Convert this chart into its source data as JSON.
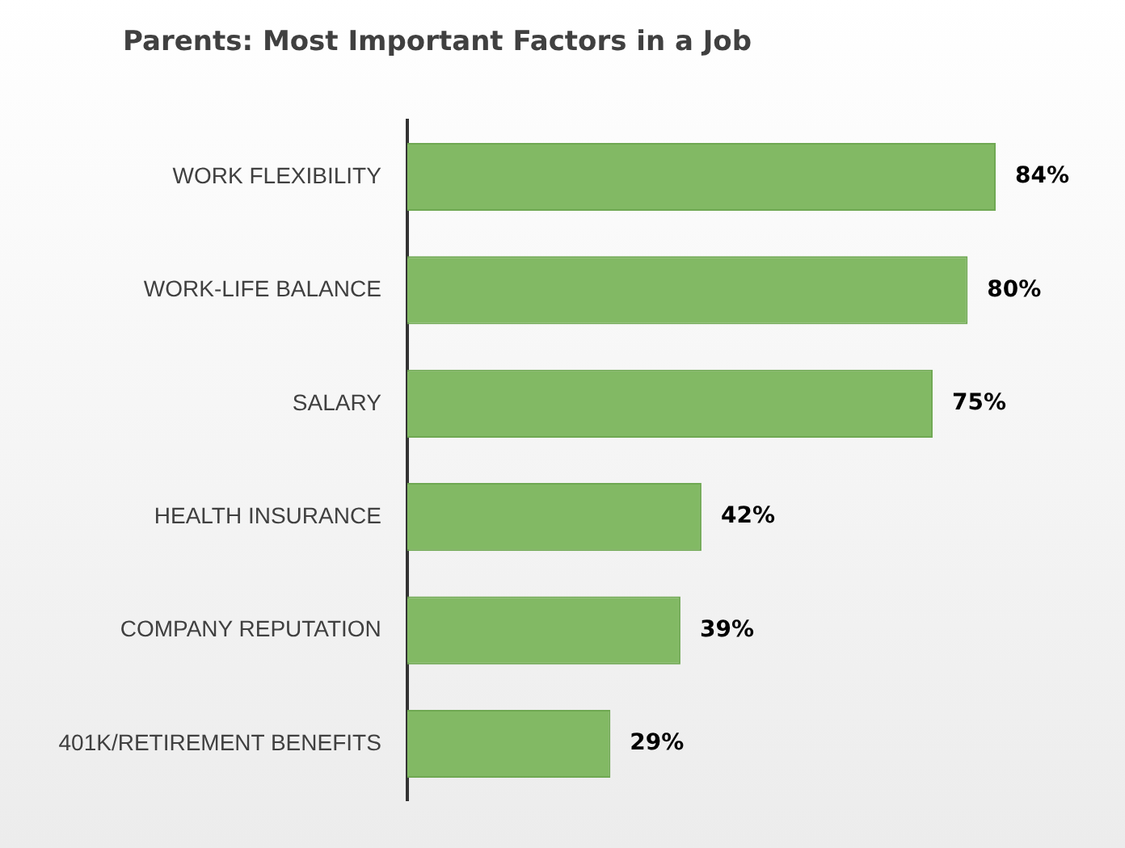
{
  "chart_data": {
    "type": "bar",
    "orientation": "horizontal",
    "title": "Parents: Most Important Factors in a Job",
    "categories": [
      "WORK FLEXIBILITY",
      "WORK-LIFE BALANCE",
      "SALARY",
      "HEALTH INSURANCE",
      "COMPANY REPUTATION",
      "401K/RETIREMENT BENEFITS"
    ],
    "values": [
      84,
      80,
      75,
      42,
      39,
      29
    ],
    "value_labels": [
      "84%",
      "80%",
      "75%",
      "42%",
      "39%",
      "29%"
    ],
    "color": "#82b964",
    "legend": false
  }
}
